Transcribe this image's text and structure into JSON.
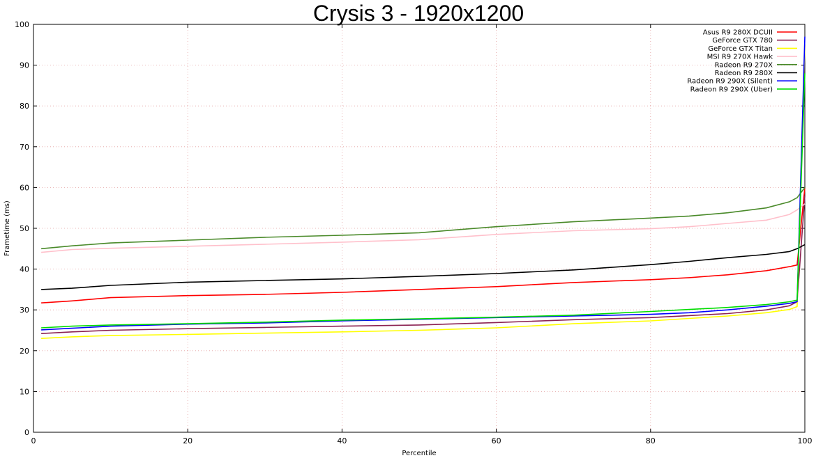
{
  "chart_data": {
    "type": "line",
    "title": "Crysis 3 - 1920x1200",
    "xlabel": "Percentile",
    "ylabel": "Frametime (ms)",
    "xlim": [
      0,
      100
    ],
    "ylim": [
      0,
      100
    ],
    "xticks": [
      "0",
      "20",
      "40",
      "60",
      "80",
      "100"
    ],
    "yticks": [
      "0",
      "10",
      "20",
      "30",
      "40",
      "50",
      "60",
      "70",
      "80",
      "90",
      "100"
    ],
    "grid": true,
    "legend_position": "top-right",
    "x": [
      1,
      5,
      10,
      20,
      30,
      40,
      50,
      60,
      70,
      80,
      85,
      90,
      95,
      98,
      99,
      100
    ],
    "series": [
      {
        "name": "Asus R9 280X DCUII",
        "color": "#ff0000",
        "values": [
          31.7,
          32.2,
          33.0,
          33.5,
          33.8,
          34.3,
          35.0,
          35.7,
          36.7,
          37.4,
          37.9,
          38.6,
          39.6,
          40.6,
          41.0,
          60.0
        ]
      },
      {
        "name": "GeForce GTX 780",
        "color": "#8b2252",
        "values": [
          24.2,
          24.6,
          25.0,
          25.4,
          25.7,
          26.0,
          26.3,
          26.9,
          27.6,
          28.1,
          28.6,
          29.1,
          30.0,
          31.0,
          32.0,
          58.0
        ]
      },
      {
        "name": "GeForce GTX Titan",
        "color": "#ffff00",
        "values": [
          23.0,
          23.4,
          23.7,
          24.0,
          24.3,
          24.6,
          25.0,
          25.6,
          26.6,
          27.3,
          27.9,
          28.5,
          29.3,
          30.1,
          30.8,
          95.0
        ]
      },
      {
        "name": "MSI R9 270X Hawk",
        "color": "#ffc0cb",
        "values": [
          44.1,
          44.8,
          45.1,
          45.6,
          46.1,
          46.6,
          47.2,
          48.5,
          49.4,
          49.9,
          50.4,
          51.2,
          52.0,
          53.4,
          54.5,
          56.0
        ]
      },
      {
        "name": "Radeon R9 270X",
        "color": "#4a8a2a",
        "values": [
          45.0,
          45.7,
          46.4,
          47.1,
          47.8,
          48.3,
          48.9,
          50.4,
          51.6,
          52.5,
          53.0,
          53.8,
          55.0,
          56.5,
          57.5,
          60.0
        ]
      },
      {
        "name": "Radeon R9 280X",
        "color": "#000000",
        "values": [
          35.0,
          35.3,
          36.0,
          36.8,
          37.2,
          37.6,
          38.2,
          38.9,
          39.8,
          41.1,
          41.9,
          42.8,
          43.6,
          44.3,
          45.0,
          46.0
        ]
      },
      {
        "name": "Radeon R9 290X (Silent)",
        "color": "#0000ff",
        "values": [
          25.1,
          25.5,
          26.0,
          26.5,
          26.8,
          27.3,
          27.7,
          28.1,
          28.5,
          28.9,
          29.3,
          30.0,
          30.9,
          31.6,
          32.0,
          97.0
        ]
      },
      {
        "name": "Radeon R9 290X (Uber)",
        "color": "#00dd00",
        "values": [
          25.6,
          26.0,
          26.3,
          26.6,
          27.0,
          27.5,
          27.8,
          28.2,
          28.7,
          29.6,
          30.1,
          30.6,
          31.3,
          32.0,
          32.4,
          88.0
        ]
      }
    ]
  }
}
